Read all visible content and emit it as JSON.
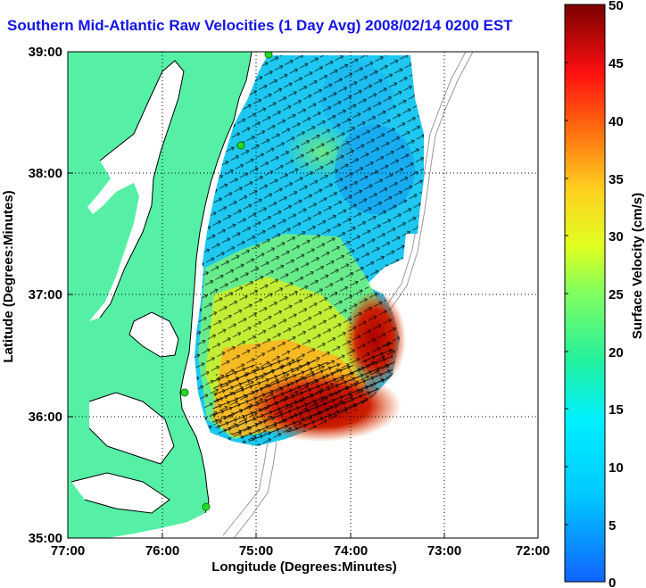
{
  "title": "Southern Mid-Atlantic Raw Velocities (1 Day Avg) 2008/02/14 0200 EST",
  "x_axis": {
    "label": "Longitude (Degrees:Minutes)",
    "ticks": [
      "77:00",
      "76:00",
      "75:00",
      "74:00",
      "73:00",
      "72:00"
    ]
  },
  "y_axis": {
    "label": "Latitude (Degrees:Minutes)",
    "ticks": [
      "39:00",
      "38:00",
      "37:00",
      "36:00",
      "35:00"
    ]
  },
  "colorbar": {
    "label": "Surface Velocity (cm/s)",
    "ticks": [
      "50",
      "45",
      "40",
      "35",
      "30",
      "25",
      "20",
      "15",
      "10",
      "5",
      "0"
    ],
    "min": 0,
    "max": 50
  },
  "colors": {
    "land": "#55f0a6",
    "title": "#1414e6",
    "station": "#22dd22"
  },
  "stations_count": 4
}
